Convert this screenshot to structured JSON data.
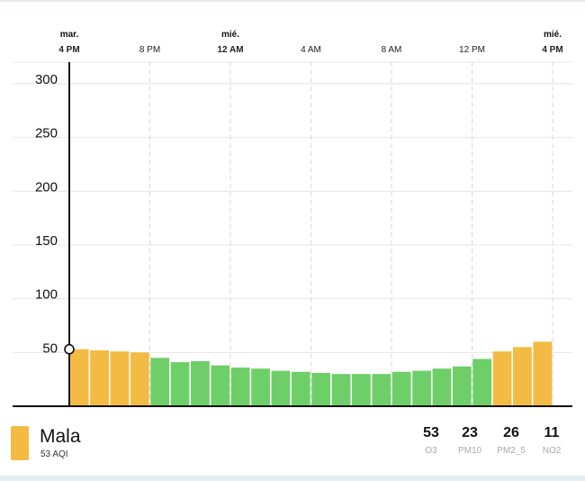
{
  "chart_data": {
    "type": "bar",
    "ylim": [
      0,
      320
    ],
    "yticks": [
      50,
      100,
      150,
      200,
      250,
      300
    ],
    "x_ticks": [
      {
        "day": "mar.",
        "time": "4 PM",
        "bold": true,
        "bar_index": 0
      },
      {
        "day": "",
        "time": "8 PM",
        "bold": false,
        "bar_index": 4
      },
      {
        "day": "mié.",
        "time": "12 AM",
        "bold": true,
        "bar_index": 8
      },
      {
        "day": "",
        "time": "4 AM",
        "bold": false,
        "bar_index": 12
      },
      {
        "day": "",
        "time": "8 AM",
        "bold": false,
        "bar_index": 16
      },
      {
        "day": "",
        "time": "12 PM",
        "bold": false,
        "bar_index": 20
      },
      {
        "day": "mié.",
        "time": "4 PM",
        "bold": true,
        "bar_index": 24
      }
    ],
    "values": [
      53,
      52,
      51,
      50,
      45,
      41,
      42,
      38,
      36,
      35,
      33,
      32,
      31,
      30,
      30,
      30,
      32,
      33,
      35,
      37,
      44,
      51,
      55,
      60
    ],
    "colors": [
      "#f3bb43",
      "#f3bb43",
      "#f3bb43",
      "#f3bb43",
      "#6ecf68",
      "#6ecf68",
      "#6ecf68",
      "#6ecf68",
      "#6ecf68",
      "#6ecf68",
      "#6ecf68",
      "#6ecf68",
      "#6ecf68",
      "#6ecf68",
      "#6ecf68",
      "#6ecf68",
      "#6ecf68",
      "#6ecf68",
      "#6ecf68",
      "#6ecf68",
      "#6ecf68",
      "#f3bb43",
      "#f3bb43",
      "#f3bb43"
    ],
    "current_marker_value": 53
  },
  "summary": {
    "status": "Mala",
    "aqi_text": "53 AQI",
    "status_color": "#f3bb43"
  },
  "pollutants": [
    {
      "value": "53",
      "name": "O3"
    },
    {
      "value": "23",
      "name": "PM10"
    },
    {
      "value": "26",
      "name": "PM2_5"
    },
    {
      "value": "11",
      "name": "NO2"
    }
  ]
}
